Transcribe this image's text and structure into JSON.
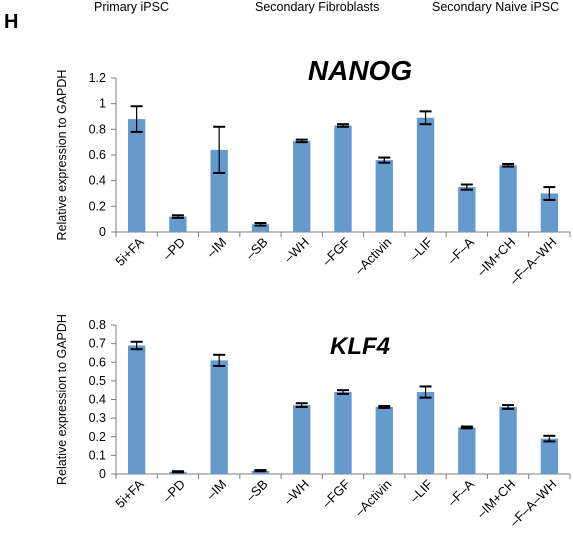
{
  "panel_label": "H",
  "header_labels": [
    "Primary iPSC",
    "Secondary Fibroblasts",
    "Secondary Naive iPSC"
  ],
  "chart_data": [
    {
      "type": "bar",
      "title": "NANOG",
      "ylabel": "Relative expression to GAPDH",
      "xlabel": "",
      "ylim": [
        0,
        1.2
      ],
      "yticks": [
        "0",
        "0.2",
        "0.4",
        "0.6",
        "0.8",
        "1",
        "1.2"
      ],
      "categories": [
        "5i+FA",
        "–PD",
        "–IM",
        "–SB",
        "–WH",
        "–FGF",
        "–Activin",
        "–LIF",
        "–F–A",
        "–IM+CH",
        "–F–A–WH"
      ],
      "values": [
        0.88,
        0.12,
        0.64,
        0.06,
        0.71,
        0.83,
        0.56,
        0.89,
        0.35,
        0.52,
        0.3
      ],
      "errors": [
        0.1,
        0.01,
        0.18,
        0.01,
        0.01,
        0.01,
        0.02,
        0.05,
        0.02,
        0.01,
        0.05
      ],
      "color": "#6699CC",
      "grid": false
    },
    {
      "type": "bar",
      "title": "KLF4",
      "ylabel": "Relative expression to GAPDH",
      "xlabel": "",
      "ylim": [
        0,
        0.8
      ],
      "yticks": [
        "0",
        "0.1",
        "0.2",
        "0.3",
        "0.4",
        "0.5",
        "0.6",
        "0.7",
        "0.8"
      ],
      "categories": [
        "5i+FA",
        "–PD",
        "–IM",
        "–SB",
        "–WH",
        "–FGF",
        "–Activin",
        "–LIF",
        "–F–A",
        "–IM+CH",
        "–F–A–WH"
      ],
      "values": [
        0.69,
        0.012,
        0.61,
        0.018,
        0.37,
        0.44,
        0.36,
        0.44,
        0.25,
        0.36,
        0.19
      ],
      "errors": [
        0.02,
        0.003,
        0.03,
        0.003,
        0.01,
        0.01,
        0.005,
        0.03,
        0.005,
        0.01,
        0.015
      ],
      "color": "#6699CC",
      "grid": false
    }
  ]
}
